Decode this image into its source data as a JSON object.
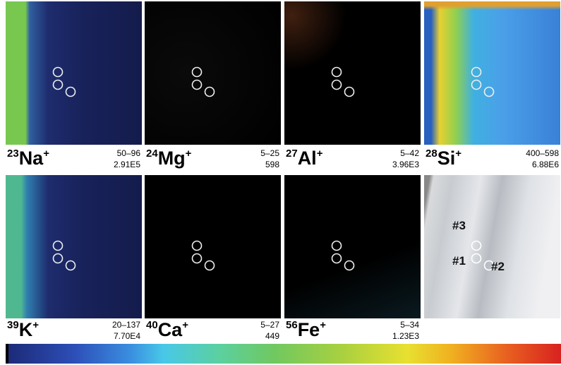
{
  "panels": [
    {
      "mass": "23",
      "element": "Na",
      "charge": "+",
      "range": "50–96",
      "total": "2.91E5"
    },
    {
      "mass": "24",
      "element": "Mg",
      "charge": "+",
      "range": "5–25",
      "total": "598"
    },
    {
      "mass": "27",
      "element": "Al",
      "charge": "+",
      "range": "5–42",
      "total": "3.96E3"
    },
    {
      "mass": "28",
      "element": "Si",
      "charge": "+",
      "range": "400–598",
      "total": "6.88E6"
    },
    {
      "mass": "39",
      "element": "K",
      "charge": "+",
      "range": "20–137",
      "total": "7.70E4"
    },
    {
      "mass": "40",
      "element": "Ca",
      "charge": "+",
      "range": "5–27",
      "total": "449"
    },
    {
      "mass": "56",
      "element": "Fe",
      "charge": "+",
      "range": "5–34",
      "total": "1.23E3"
    }
  ],
  "photo": {
    "labels": [
      "#3",
      "#1",
      "#2"
    ]
  }
}
